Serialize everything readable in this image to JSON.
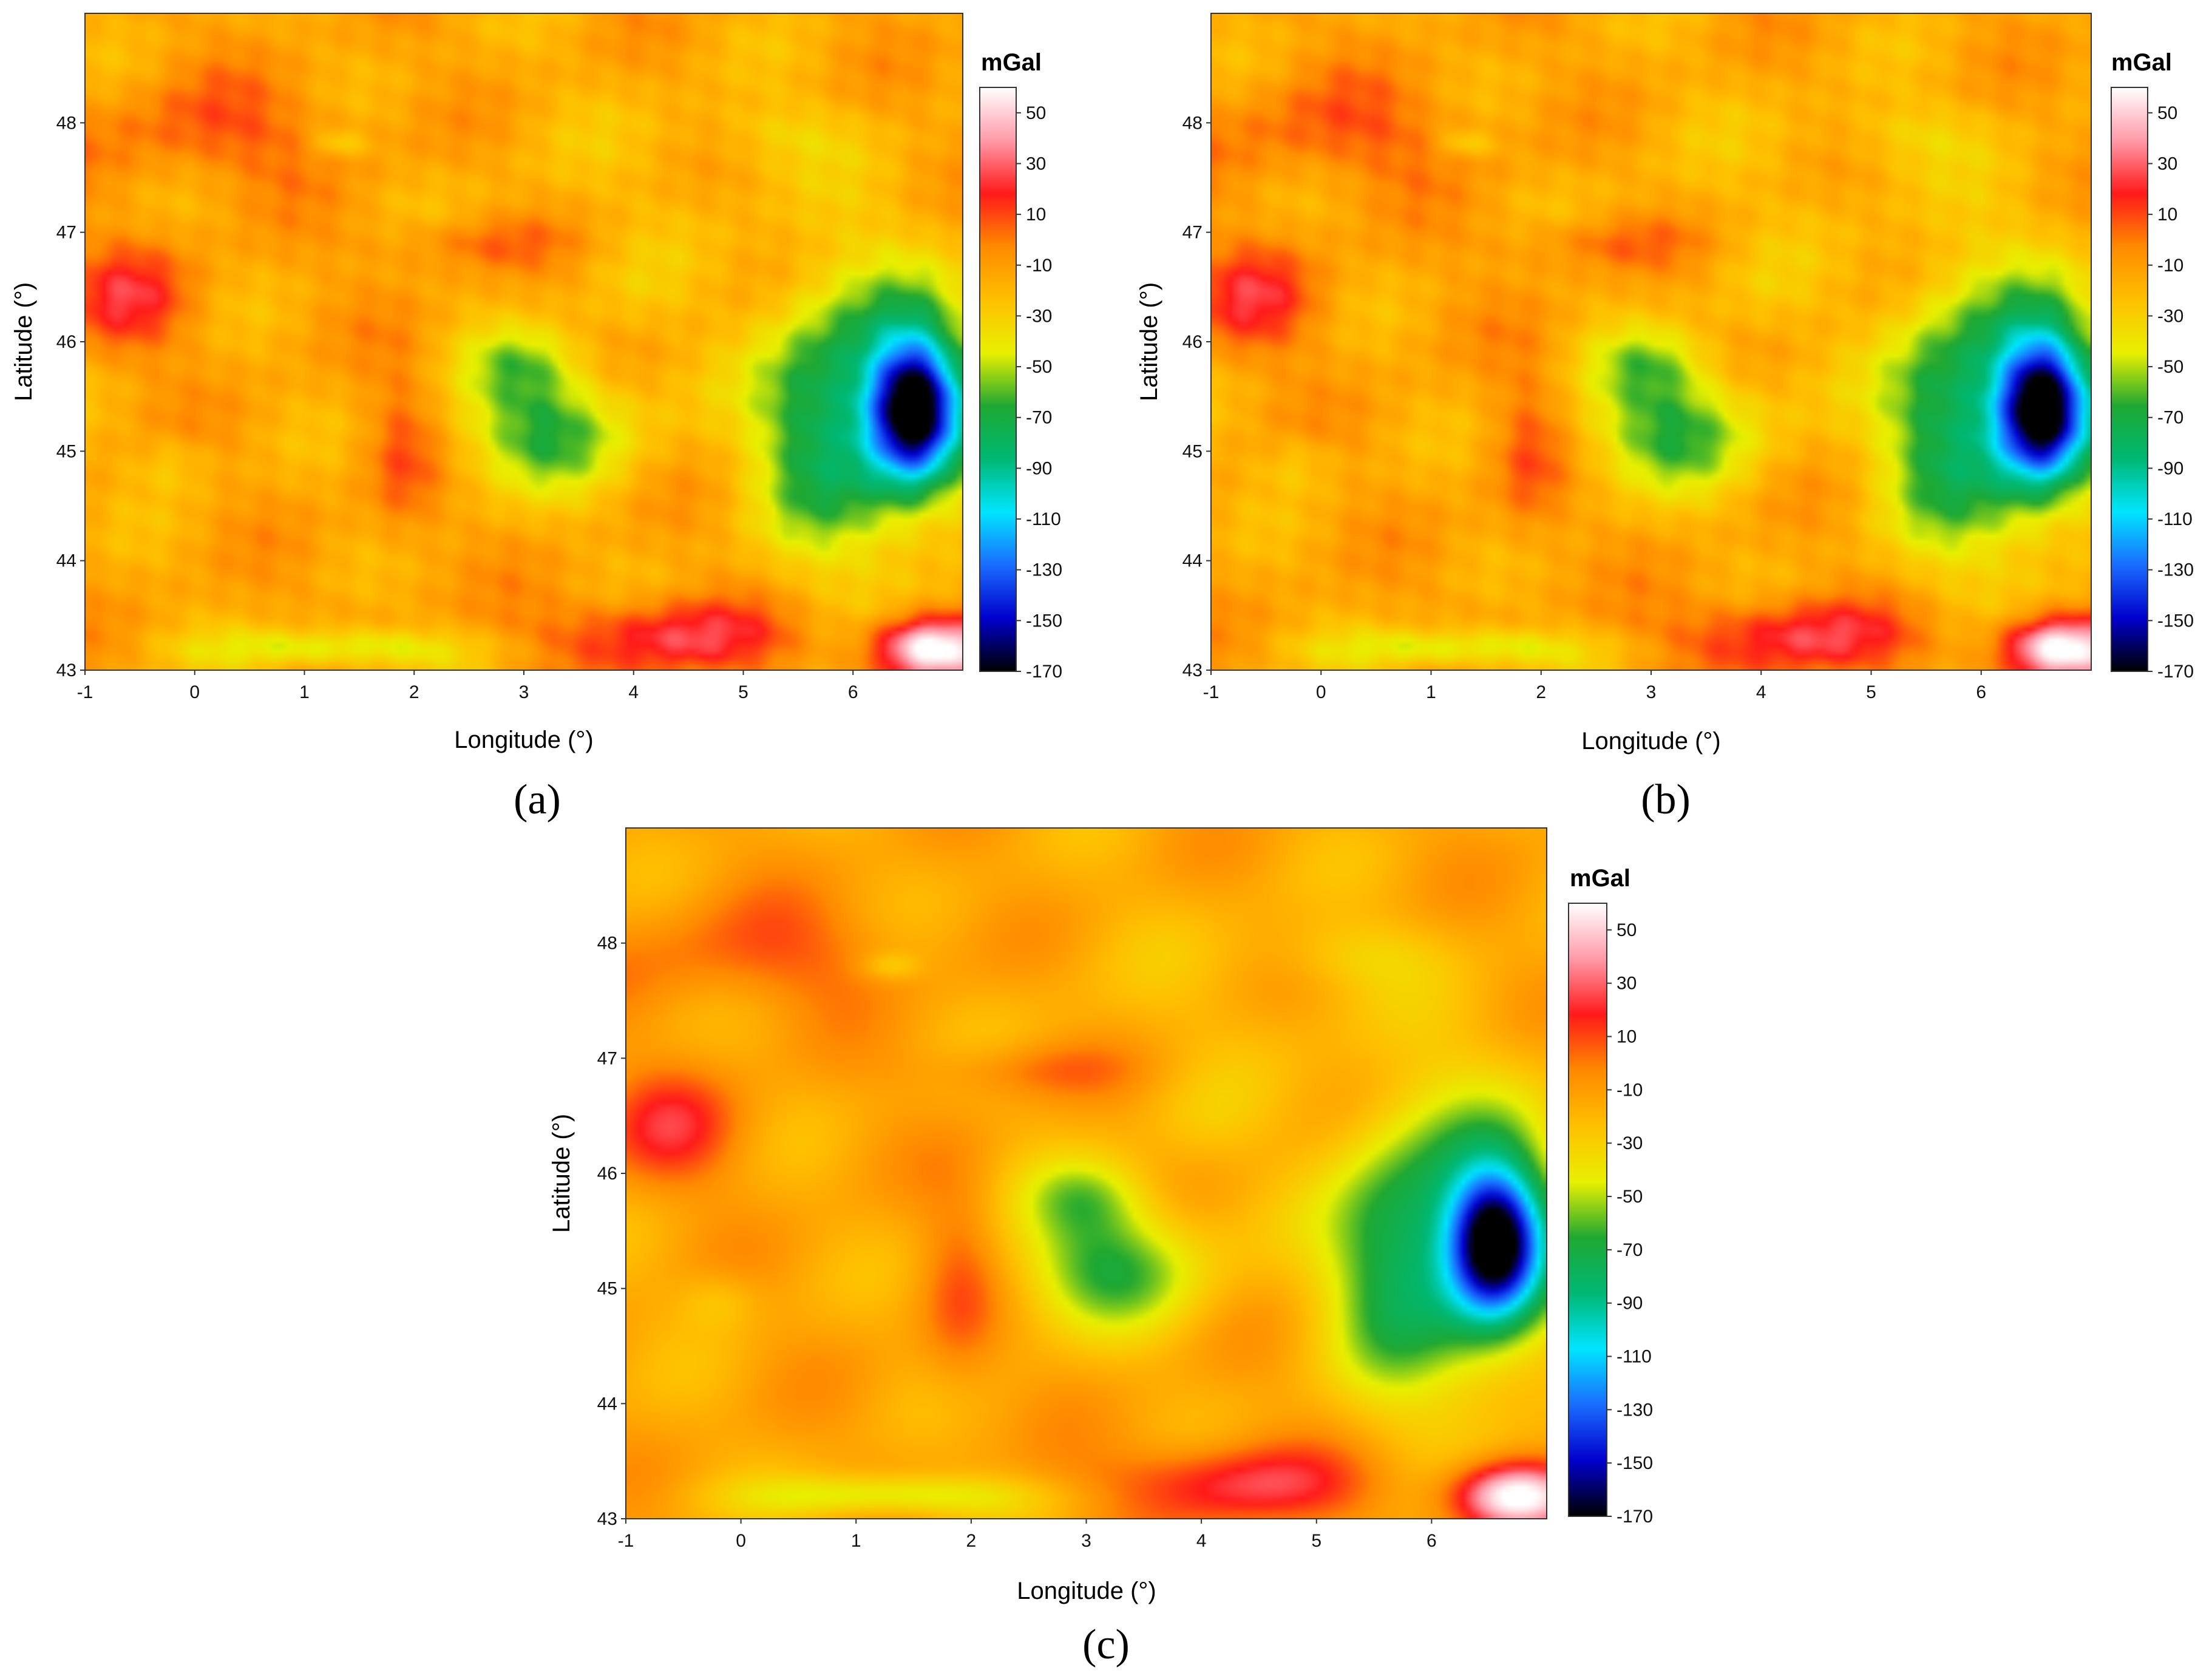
{
  "chart_data": [
    {
      "type": "heatmap",
      "panel_label": "(a)",
      "xlabel": "Longitude (°)",
      "ylabel": "Latitude (°)",
      "xlim": [
        -1,
        7
      ],
      "ylim": [
        43,
        49
      ],
      "x_ticks": [
        "-1",
        "0",
        "1",
        "2",
        "3",
        "4",
        "5",
        "6"
      ],
      "y_ticks": [
        "43",
        "44",
        "45",
        "46",
        "47",
        "48"
      ],
      "colorbar_label": "mGal",
      "colorbar_ticks": [
        "50",
        "30",
        "10",
        "-10",
        "-30",
        "-50",
        "-70",
        "-90",
        "-110",
        "-130",
        "-150",
        "-170"
      ],
      "zlim": [
        -170,
        60
      ],
      "smoothness": "sharp"
    },
    {
      "type": "heatmap",
      "panel_label": "(b)",
      "xlabel": "Longitude (°)",
      "ylabel": "Latitude (°)",
      "xlim": [
        -1,
        7
      ],
      "ylim": [
        43,
        49
      ],
      "x_ticks": [
        "-1",
        "0",
        "1",
        "2",
        "3",
        "4",
        "5",
        "6"
      ],
      "y_ticks": [
        "43",
        "44",
        "45",
        "46",
        "47",
        "48"
      ],
      "colorbar_label": "mGal",
      "colorbar_ticks": [
        "50",
        "30",
        "10",
        "-10",
        "-30",
        "-50",
        "-70",
        "-90",
        "-110",
        "-130",
        "-150",
        "-170"
      ],
      "zlim": [
        -170,
        60
      ],
      "smoothness": "sharp"
    },
    {
      "type": "heatmap",
      "panel_label": "(c)",
      "xlabel": "Longitude (°)",
      "ylabel": "Latitude (°)",
      "xlim": [
        -1,
        7
      ],
      "ylim": [
        43,
        49
      ],
      "x_ticks": [
        "-1",
        "0",
        "1",
        "2",
        "3",
        "4",
        "5",
        "6"
      ],
      "y_ticks": [
        "43",
        "44",
        "45",
        "46",
        "47",
        "48"
      ],
      "colorbar_label": "mGal",
      "colorbar_ticks": [
        "50",
        "30",
        "10",
        "-10",
        "-30",
        "-50",
        "-70",
        "-90",
        "-110",
        "-130",
        "-150",
        "-170"
      ],
      "zlim": [
        -170,
        60
      ],
      "smoothness": "smooth"
    }
  ],
  "colormap": [
    "#000000",
    "#0000cc",
    "#1a6cff",
    "#00e5ff",
    "#00b873",
    "#1fa832",
    "#e8f000",
    "#ffc000",
    "#ff8a00",
    "#ff1a1a",
    "#ff9aa8",
    "#ffffff"
  ],
  "anomalies": [
    {
      "lon": 6.55,
      "lat": 45.4,
      "value": -150,
      "sx": 0.38,
      "sy": 0.62
    },
    {
      "lon": 6.3,
      "lat": 45.4,
      "value": -85,
      "sx": 0.95,
      "sy": 1.25
    },
    {
      "lon": 5.6,
      "lat": 45.2,
      "value": -45,
      "sx": 0.55,
      "sy": 1.1
    },
    {
      "lon": 3.2,
      "lat": 45.2,
      "value": -68,
      "sx": 0.85,
      "sy": 0.55
    },
    {
      "lon": 3.0,
      "lat": 45.8,
      "value": -45,
      "sx": 0.55,
      "sy": 0.35
    },
    {
      "lon": 1.3,
      "lat": 43.2,
      "value": -55,
      "sx": 1.2,
      "sy": 0.18
    },
    {
      "lon": 4.3,
      "lat": 43.3,
      "value": 30,
      "sx": 1.1,
      "sy": 0.35
    },
    {
      "lon": 6.7,
      "lat": 43.2,
      "value": 75,
      "sx": 0.55,
      "sy": 0.3
    },
    {
      "lon": -0.6,
      "lat": 46.4,
      "value": 18,
      "sx": 0.6,
      "sy": 0.5
    },
    {
      "lon": 0.2,
      "lat": 47.9,
      "value": 8,
      "sx": 1.3,
      "sy": 0.5
    },
    {
      "lon": 1.9,
      "lat": 45.0,
      "value": 8,
      "sx": 0.35,
      "sy": 0.9
    },
    {
      "lon": 2.5,
      "lat": 46.9,
      "value": 6,
      "sx": 0.9,
      "sy": 0.25
    },
    {
      "lon": 4.0,
      "lat": 47.5,
      "value": -20,
      "sx": 2.0,
      "sy": 1.0
    },
    {
      "lon": 5.3,
      "lat": 47.9,
      "value": -30,
      "sx": 0.7,
      "sy": 0.3
    },
    {
      "lon": 1.3,
      "lat": 47.8,
      "value": -35,
      "sx": 0.25,
      "sy": 0.12
    },
    {
      "lon": -0.2,
      "lat": 44.9,
      "value": -30,
      "sx": 0.35,
      "sy": 0.25
    },
    {
      "lon": 4.0,
      "lat": 46.4,
      "value": -22,
      "sx": 0.5,
      "sy": 0.4
    }
  ],
  "base_value": -14
}
